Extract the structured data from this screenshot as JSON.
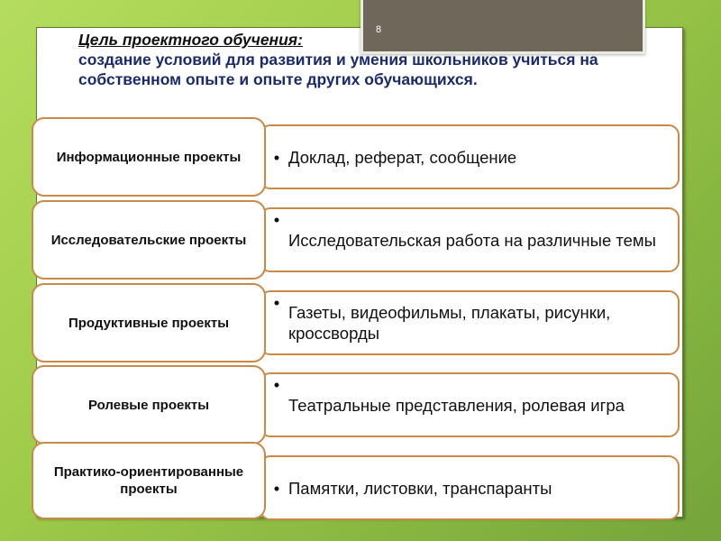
{
  "slide_number": "8",
  "goal": {
    "label": "Цель проектного обучения:",
    "text": "создание условий для развития и умения школьников учиться на собственном опыте и опыте других обучающихся."
  },
  "rows": [
    {
      "type": "Информационные проекты",
      "examples": "Доклад, реферат, сообщение"
    },
    {
      "type": "Исследовательские проекты",
      "examples": "Исследовательская работа на различные темы"
    },
    {
      "type": "Продуктивные проекты",
      "examples": "Газеты, видеофильмы, плакаты, рисунки, кроссворды"
    },
    {
      "type": "Ролевые проекты",
      "examples": "Театральные представления, ролевая игра"
    },
    {
      "type": "Практико-ориентированные проекты",
      "examples": "Памятки, листовки, транспаранты"
    }
  ],
  "bullet": "•"
}
